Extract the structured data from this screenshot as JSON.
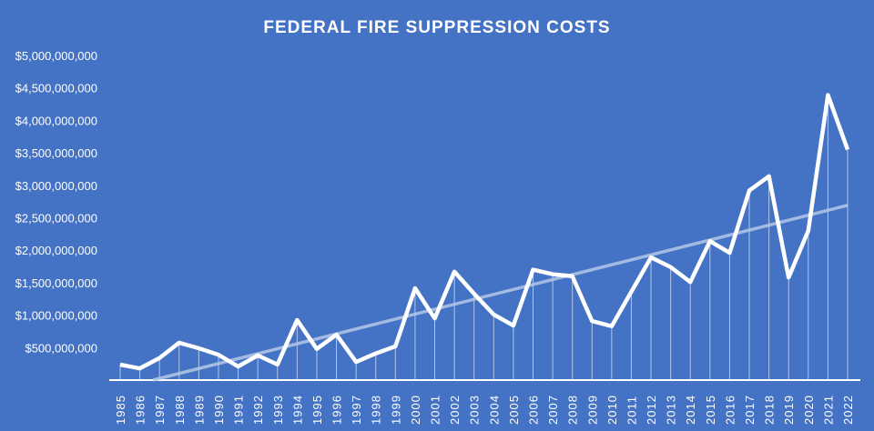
{
  "chart_data": {
    "type": "line",
    "title": "FEDERAL FIRE SUPPRESSION COSTS",
    "xlabel": "",
    "ylabel": "",
    "ylim": [
      0,
      5000000000
    ],
    "yticks": [
      "$500,000,000",
      "$1,000,000,000",
      "$1,500,000,000",
      "$2,000,000,000",
      "$2,500,000,000",
      "$3,000,000,000",
      "$3,500,000,000",
      "$4,000,000,000",
      "$4,500,000,000",
      "$5,000,000,000"
    ],
    "ytick_values": [
      500000000,
      1000000000,
      1500000000,
      2000000000,
      2500000000,
      3000000000,
      3500000000,
      4000000000,
      4500000000,
      5000000000
    ],
    "categories": [
      "1985",
      "1986",
      "1987",
      "1988",
      "1989",
      "1990",
      "1991",
      "1992",
      "1993",
      "1994",
      "1995",
      "1996",
      "1997",
      "1998",
      "1999",
      "2000",
      "2001",
      "2002",
      "2003",
      "2004",
      "2005",
      "2006",
      "2007",
      "2008",
      "2009",
      "2010",
      "2011",
      "2012",
      "2013",
      "2014",
      "2015",
      "2016",
      "2017",
      "2018",
      "2019",
      "2020",
      "2021",
      "2022"
    ],
    "values": [
      238000000,
      180000000,
      340000000,
      575000000,
      490000000,
      390000000,
      210000000,
      380000000,
      240000000,
      925000000,
      480000000,
      700000000,
      280000000,
      410000000,
      520000000,
      1415000000,
      950000000,
      1670000000,
      1330000000,
      1010000000,
      840000000,
      1700000000,
      1630000000,
      1600000000,
      910000000,
      830000000,
      1360000000,
      1890000000,
      1740000000,
      1510000000,
      2140000000,
      1960000000,
      2920000000,
      3140000000,
      1580000000,
      2300000000,
      4390000000,
      3550000000
    ],
    "trendline": "linear",
    "grid": false,
    "legend": "none",
    "colors": {
      "background": "#4472C4",
      "line": "#FFFFFF",
      "trend": "#B4C7E7"
    }
  }
}
